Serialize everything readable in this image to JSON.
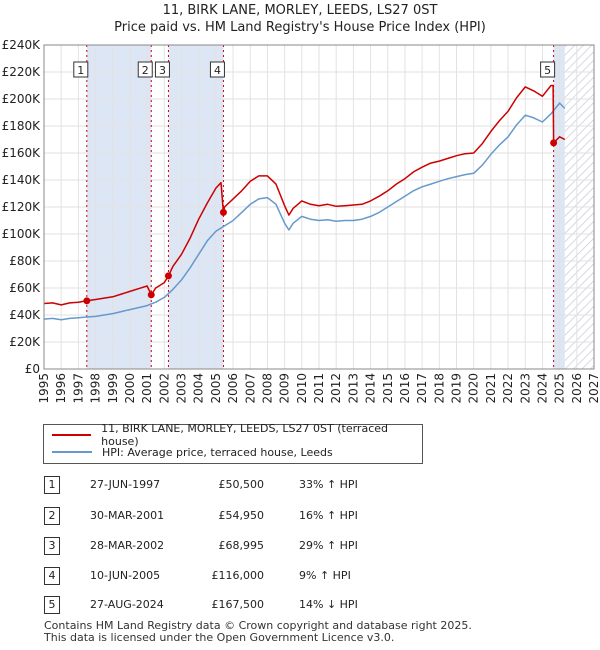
{
  "title_line1": "11, BIRK LANE, MORLEY, LEEDS, LS27 0ST",
  "title_line2": "Price paid vs. HM Land Registry's House Price Index (HPI)",
  "colors": {
    "price": "#cc0000",
    "hpi": "#6699cc",
    "band": "#dde6f5",
    "marker_line": "#cc0000",
    "future_hatch": "#c8ccd8"
  },
  "legend": {
    "price_label": "11, BIRK LANE, MORLEY, LEEDS, LS27 0ST (terraced house)",
    "hpi_label": "HPI: Average price, terraced house, Leeds"
  },
  "transactions": [
    {
      "num": "1",
      "date": "27-JUN-1997",
      "price": "£50,500",
      "diff": "33% ↑ HPI"
    },
    {
      "num": "2",
      "date": "30-MAR-2001",
      "price": "£54,950",
      "diff": "16% ↑ HPI"
    },
    {
      "num": "3",
      "date": "28-MAR-2002",
      "price": "£68,995",
      "diff": "29% ↑ HPI"
    },
    {
      "num": "4",
      "date": "10-JUN-2005",
      "price": "£116,000",
      "diff": "9% ↑ HPI"
    },
    {
      "num": "5",
      "date": "27-AUG-2024",
      "price": "£167,500",
      "diff": "14% ↓ HPI"
    }
  ],
  "footer_line1": "Contains HM Land Registry data © Crown copyright and database right 2025.",
  "footer_line2": "This data is licensed under the Open Government Licence v3.0.",
  "chart_data": {
    "type": "line",
    "title": "11, BIRK LANE, MORLEY, LEEDS, LS27 0ST — Price paid vs. HM Land Registry's House Price Index (HPI)",
    "xlabel": "",
    "ylabel": "",
    "xlim": [
      1995,
      2027
    ],
    "ylim": [
      0,
      240000
    ],
    "x_ticks": [
      "1995",
      "1996",
      "1997",
      "1998",
      "1999",
      "2000",
      "2001",
      "2002",
      "2003",
      "2004",
      "2005",
      "2006",
      "2007",
      "2008",
      "2009",
      "2010",
      "2011",
      "2012",
      "2013",
      "2014",
      "2015",
      "2016",
      "2017",
      "2018",
      "2019",
      "2020",
      "2021",
      "2022",
      "2023",
      "2024",
      "2025",
      "2026",
      "2027"
    ],
    "y_ticks": [
      "£0",
      "£20K",
      "£40K",
      "£60K",
      "£80K",
      "£100K",
      "£120K",
      "£140K",
      "£160K",
      "£180K",
      "£200K",
      "£220K",
      "£240K"
    ],
    "grid": true,
    "sale_markers": [
      {
        "label": "1",
        "x": 1997.49,
        "y": 50500
      },
      {
        "label": "2",
        "x": 2001.24,
        "y": 54950
      },
      {
        "label": "3",
        "x": 2002.24,
        "y": 68995
      },
      {
        "label": "4",
        "x": 2005.44,
        "y": 116000
      },
      {
        "label": "5",
        "x": 2024.65,
        "y": 167500
      }
    ],
    "shaded_bands": [
      [
        1997.49,
        2001.24
      ],
      [
        2002.24,
        2005.44
      ],
      [
        2024.65,
        2025.3
      ]
    ],
    "future_from": 2025.3,
    "series": [
      {
        "name": "HPI: Average price, terraced house, Leeds",
        "x": [
          1995.0,
          1995.5,
          1996.0,
          1996.5,
          1997.0,
          1997.5,
          1998.0,
          1998.5,
          1999.0,
          1999.5,
          2000.0,
          2000.5,
          2001.0,
          2001.5,
          2002.0,
          2002.5,
          2003.0,
          2003.5,
          2004.0,
          2004.5,
          2005.0,
          2005.5,
          2006.0,
          2006.5,
          2007.0,
          2007.5,
          2008.0,
          2008.5,
          2009.0,
          2009.25,
          2009.5,
          2010.0,
          2010.5,
          2011.0,
          2011.5,
          2012.0,
          2012.5,
          2013.0,
          2013.5,
          2014.0,
          2014.5,
          2015.0,
          2015.5,
          2016.0,
          2016.5,
          2017.0,
          2017.5,
          2018.0,
          2018.5,
          2019.0,
          2019.5,
          2020.0,
          2020.5,
          2021.0,
          2021.5,
          2022.0,
          2022.5,
          2023.0,
          2023.5,
          2024.0,
          2024.5,
          2025.0,
          2025.3
        ],
        "y": [
          37000,
          37500,
          36500,
          37500,
          38000,
          38500,
          39000,
          40000,
          41000,
          42500,
          44000,
          45500,
          47000,
          49500,
          53000,
          59000,
          66000,
          75000,
          85000,
          95000,
          102000,
          106000,
          110000,
          116000,
          122000,
          126000,
          127000,
          122000,
          108000,
          103000,
          108000,
          113000,
          111000,
          110000,
          110500,
          109500,
          110000,
          110000,
          111000,
          113000,
          116000,
          120000,
          124000,
          128000,
          132000,
          135000,
          137000,
          139000,
          141000,
          142500,
          144000,
          145000,
          151000,
          159000,
          166000,
          172000,
          181000,
          188000,
          186000,
          183000,
          189000,
          197000,
          193000
        ]
      },
      {
        "name": "11, BIRK LANE, MORLEY, LEEDS, LS27 0ST (terraced house)",
        "x": [
          1995.0,
          1995.5,
          1996.0,
          1996.5,
          1997.0,
          1997.49,
          1998.0,
          1998.5,
          1999.0,
          1999.5,
          2000.0,
          2000.5,
          2001.0,
          2001.24,
          2001.5,
          2002.0,
          2002.24,
          2002.5,
          2003.0,
          2003.5,
          2004.0,
          2004.5,
          2005.0,
          2005.3,
          2005.44,
          2005.5,
          2006.0,
          2006.5,
          2007.0,
          2007.5,
          2008.0,
          2008.5,
          2009.0,
          2009.25,
          2009.5,
          2010.0,
          2010.5,
          2011.0,
          2011.5,
          2012.0,
          2012.5,
          2013.0,
          2013.5,
          2014.0,
          2014.5,
          2015.0,
          2015.5,
          2016.0,
          2016.5,
          2017.0,
          2017.5,
          2018.0,
          2018.5,
          2019.0,
          2019.5,
          2020.0,
          2020.5,
          2021.0,
          2021.5,
          2022.0,
          2022.5,
          2023.0,
          2023.5,
          2024.0,
          2024.5,
          2024.62,
          2024.65,
          2025.0,
          2025.3
        ],
        "y": [
          48500,
          49000,
          47500,
          49000,
          49500,
          50500,
          51500,
          52500,
          53500,
          55500,
          57500,
          59500,
          61500,
          54950,
          60000,
          64000,
          68995,
          76000,
          85000,
          97000,
          111000,
          123000,
          134000,
          138000,
          116000,
          120000,
          126000,
          132000,
          139000,
          143000,
          143000,
          137000,
          121000,
          114000,
          119000,
          124500,
          122000,
          121000,
          122000,
          120500,
          121000,
          121500,
          122000,
          124500,
          128000,
          132000,
          137000,
          141000,
          146000,
          149500,
          152500,
          154000,
          156000,
          158000,
          159500,
          160000,
          167000,
          176000,
          184000,
          191000,
          201000,
          209000,
          206000,
          202000,
          210000,
          210000,
          167500,
          172000,
          170000
        ]
      }
    ]
  }
}
